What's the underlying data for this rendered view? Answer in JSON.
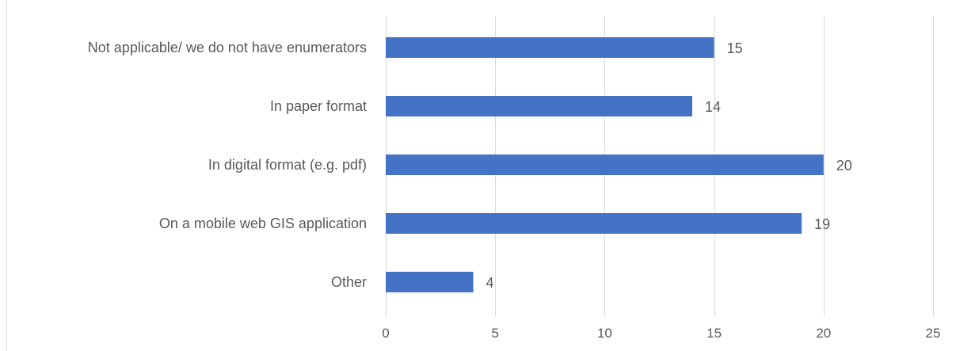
{
  "chart_data": {
    "type": "bar",
    "orientation": "horizontal",
    "title": "",
    "xlabel": "",
    "ylabel": "",
    "categories": [
      "Not applicable/ we do not have enumerators",
      "In paper format",
      "In digital format (e.g. pdf)",
      "On a mobile web GIS application",
      "Other"
    ],
    "values": [
      15,
      14,
      20,
      19,
      4
    ],
    "xlim": [
      0,
      25
    ],
    "x_ticks": [
      0,
      5,
      10,
      15,
      20,
      25
    ],
    "grid": "vertical",
    "legend": "none",
    "bar_color": "#4472C4",
    "grid_color": "#D9D9D9",
    "label_color": "#595959"
  }
}
